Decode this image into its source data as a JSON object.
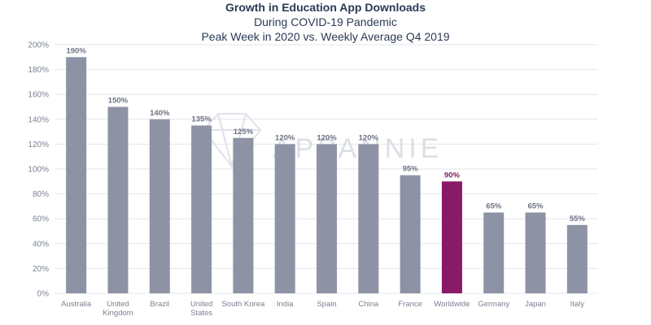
{
  "chart_data": {
    "type": "bar",
    "title": "Growth in Education App Downloads",
    "subtitle_lines": [
      "During COVID-19 Pandemic",
      "Peak Week in 2020 vs. Weekly Average Q4 2019"
    ],
    "categories": [
      "Australia",
      "United Kingdom",
      "Brazil",
      "United States",
      "South Korea",
      "India",
      "Spain",
      "China",
      "France",
      "Worldwide",
      "Germany",
      "Japan",
      "Italy"
    ],
    "category_lines": [
      [
        "Australia"
      ],
      [
        "United",
        "Kingdom"
      ],
      [
        "Brazil"
      ],
      [
        "United",
        "States"
      ],
      [
        "South Korea"
      ],
      [
        "India"
      ],
      [
        "Spain"
      ],
      [
        "China"
      ],
      [
        "France"
      ],
      [
        "Worldwide"
      ],
      [
        "Germany"
      ],
      [
        "Japan"
      ],
      [
        "Italy"
      ]
    ],
    "values": [
      190,
      150,
      140,
      135,
      125,
      120,
      120,
      120,
      95,
      90,
      65,
      65,
      55
    ],
    "value_labels": [
      "190%",
      "150%",
      "140%",
      "135%",
      "125%",
      "120%",
      "120%",
      "120%",
      "95%",
      "90%",
      "65%",
      "65%",
      "55%"
    ],
    "highlight_category": "Worldwide",
    "ylim": [
      0,
      200
    ],
    "yticks": [
      0,
      20,
      40,
      60,
      80,
      100,
      120,
      140,
      160,
      180,
      200
    ],
    "ytick_labels": [
      "0%",
      "20%",
      "40%",
      "60%",
      "80%",
      "100%",
      "120%",
      "140%",
      "160%",
      "180%",
      "200%"
    ],
    "xlabel": "",
    "ylabel": "",
    "grid": true,
    "colors": {
      "bar": "#8d93a5",
      "highlight": "#8a1a68",
      "grid": "#e3e5ea",
      "title": "#2b3a55"
    },
    "watermark": "APPANNIE"
  }
}
